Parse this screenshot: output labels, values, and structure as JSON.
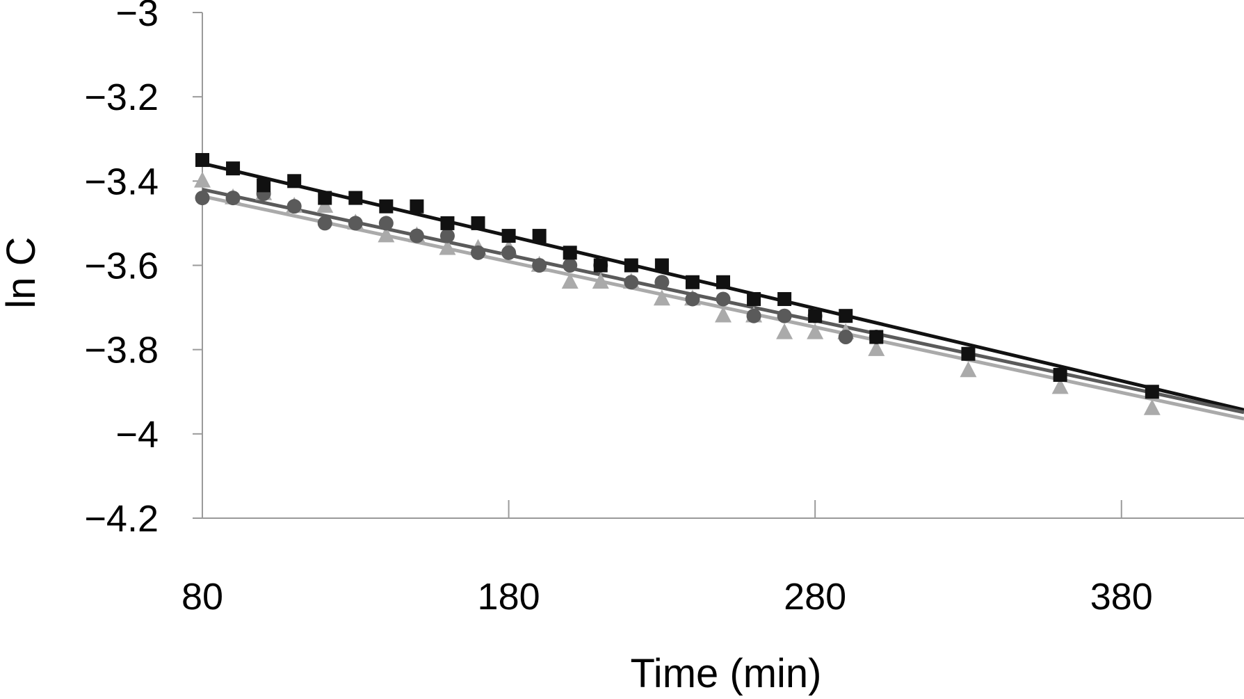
{
  "chart_data": {
    "type": "scatter",
    "title": "",
    "xlabel": "Time (min)",
    "ylabel": "ln C",
    "xlim": [
      80,
      420
    ],
    "ylim": [
      -4.2,
      -3.0
    ],
    "x_ticks": [
      80,
      180,
      280,
      380
    ],
    "x_tick_labels": [
      "80",
      "180",
      "280",
      "380"
    ],
    "y_ticks": [
      -3.0,
      -3.2,
      -3.4,
      -3.6,
      -3.8,
      -4.0,
      -4.2
    ],
    "y_tick_labels": [
      "−3",
      "−3.2",
      "−3.4",
      "−3.6",
      "−3.8",
      "−4",
      "−4.2"
    ],
    "grid": false,
    "legend": "none",
    "series": [
      {
        "marker": "square",
        "color": "#111111",
        "x": [
          80,
          90,
          100,
          110,
          120,
          130,
          140,
          150,
          160,
          170,
          180,
          190,
          200,
          210,
          220,
          230,
          240,
          250,
          260,
          270,
          280,
          290,
          300,
          330,
          360,
          390
        ],
        "y": [
          -3.35,
          -3.37,
          -3.41,
          -3.4,
          -3.44,
          -3.44,
          -3.46,
          -3.46,
          -3.5,
          -3.5,
          -3.53,
          -3.53,
          -3.57,
          -3.6,
          -3.6,
          -3.6,
          -3.64,
          -3.64,
          -3.68,
          -3.68,
          -3.72,
          -3.72,
          -3.77,
          -3.81,
          -3.86,
          -3.9
        ],
        "fit": {
          "x": [
            80,
            420
          ],
          "y": [
            -3.358,
            -3.943
          ]
        }
      },
      {
        "marker": "circle",
        "color": "#5a5a5a",
        "x": [
          80,
          90,
          100,
          110,
          120,
          130,
          140,
          150,
          160,
          170,
          180,
          190,
          200,
          210,
          220,
          230,
          240,
          250,
          260,
          270,
          280,
          290,
          300
        ],
        "y": [
          -3.44,
          -3.44,
          -3.43,
          -3.46,
          -3.5,
          -3.5,
          -3.5,
          -3.53,
          -3.53,
          -3.57,
          -3.57,
          -3.6,
          -3.6,
          -3.6,
          -3.64,
          -3.64,
          -3.68,
          -3.68,
          -3.72,
          -3.72,
          -3.72,
          -3.77,
          -3.77
        ],
        "fit": {
          "x": [
            80,
            420
          ],
          "y": [
            -3.42,
            -3.949
          ]
        }
      },
      {
        "marker": "triangle",
        "color": "#aaaaaa",
        "x": [
          80,
          90,
          100,
          110,
          120,
          130,
          140,
          150,
          160,
          170,
          180,
          190,
          200,
          210,
          220,
          230,
          240,
          250,
          260,
          270,
          280,
          290,
          300,
          330,
          360,
          390
        ],
        "y": [
          -3.4,
          -3.44,
          -3.43,
          -3.46,
          -3.46,
          -3.5,
          -3.53,
          -3.53,
          -3.56,
          -3.56,
          -3.56,
          -3.6,
          -3.64,
          -3.64,
          -3.64,
          -3.68,
          -3.68,
          -3.72,
          -3.72,
          -3.76,
          -3.76,
          -3.76,
          -3.8,
          -3.85,
          -3.89,
          -3.94
        ],
        "fit": {
          "x": [
            80,
            420
          ],
          "y": [
            -3.436,
            -3.964
          ]
        }
      }
    ]
  }
}
